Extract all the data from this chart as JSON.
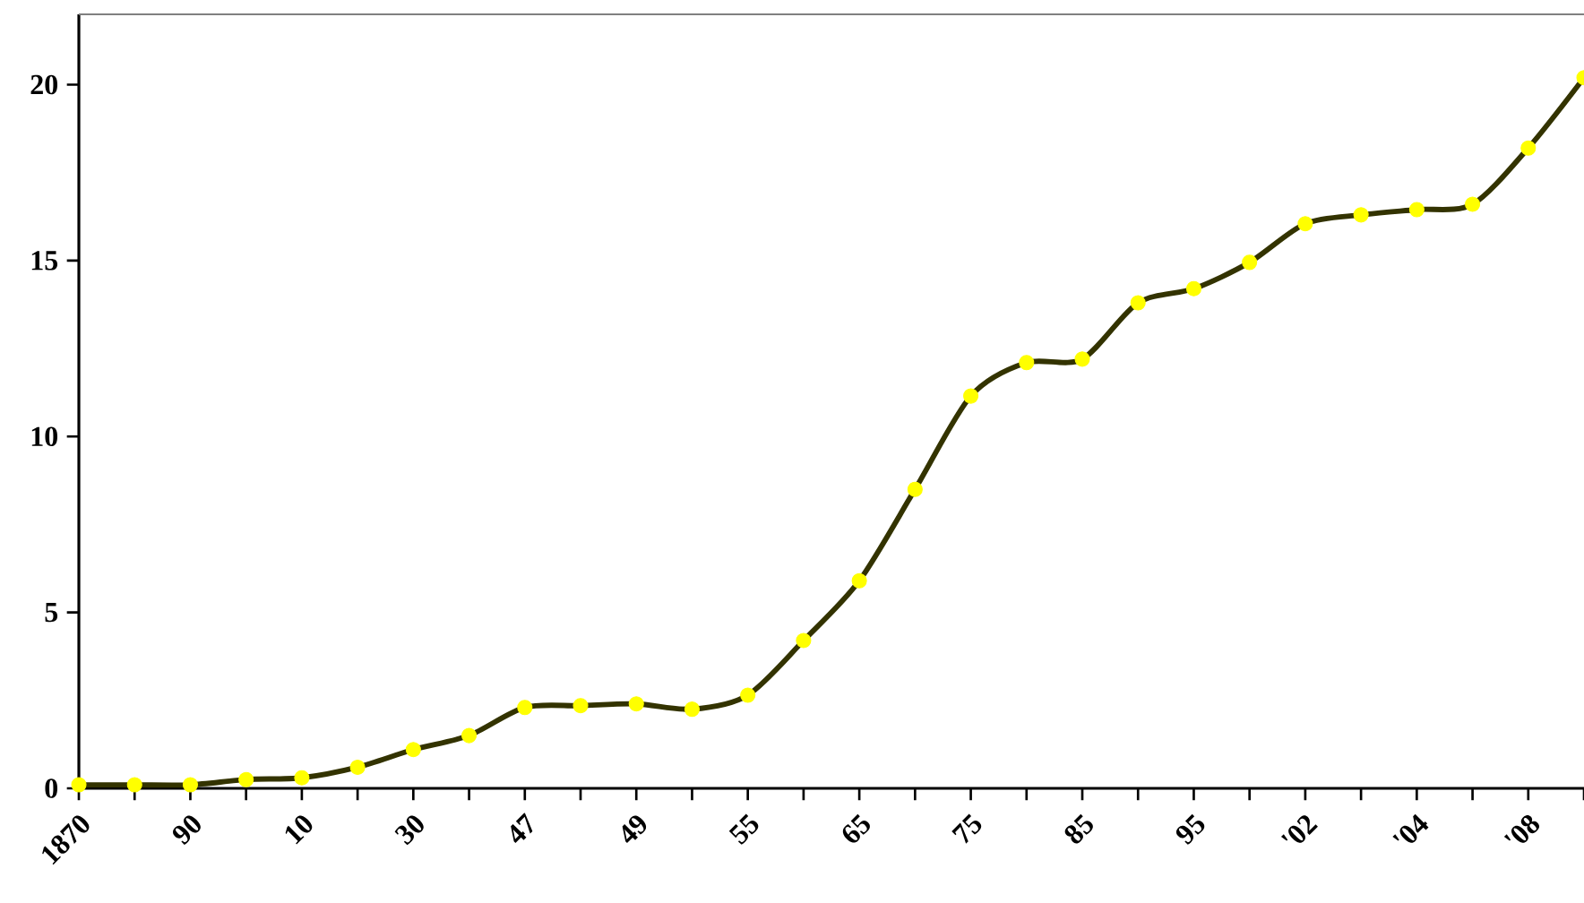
{
  "chart_data": {
    "type": "line",
    "categories": [
      "1870",
      null,
      "90",
      null,
      "10",
      null,
      "30",
      null,
      "47",
      null,
      "49",
      null,
      "55",
      null,
      "65",
      null,
      "75",
      null,
      "85",
      null,
      "95",
      null,
      "'02",
      null,
      "'04",
      null,
      "'08",
      null
    ],
    "series": [
      {
        "color": "#333300",
        "colors": [
          "#ffff00",
          "#ffff00",
          "#ffff00",
          "#ffff00",
          "#ffff00",
          "#ffff00",
          "#ffff00",
          "#ffff00",
          "#ffff00",
          "#ffff00",
          "#ffff00",
          "#ffff00",
          "#ffff00",
          "#ffff00",
          "#ffff00",
          "#ffff00",
          "#ffff00",
          "#ffff00",
          "#ffff00",
          "#ffff00",
          "#ffff00",
          "#ffff00",
          "#ffff00",
          "#ffff00",
          "#ffff00",
          "#ffff00",
          "#ffff00",
          "#ffff00"
        ],
        "values": [
          0.1,
          0.1,
          0.1,
          0.25,
          0.3,
          0.6,
          1.1,
          1.5,
          2.3,
          2.35,
          2.4,
          2.25,
          2.65,
          4.2,
          5.9,
          8.5,
          11.15,
          12.1,
          12.2,
          13.8,
          14.2,
          14.95,
          16.05,
          16.3,
          16.45,
          16.6,
          18.2,
          20.2
        ]
      }
    ],
    "ylim": [
      0,
      22
    ],
    "yticks": [
      0,
      5,
      10,
      15,
      20
    ],
    "marker": "circle",
    "line_style": "solid"
  }
}
